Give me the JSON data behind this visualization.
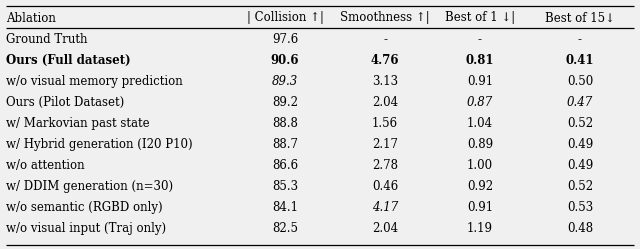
{
  "header_col0": "Ablation",
  "header_cols": [
    "| Collision ↑|",
    "Smoothness ↑|",
    "Best of 1 ↓|",
    "Best of 15↓"
  ],
  "rows": [
    {
      "ablation": "Ground Truth",
      "collision": "97.6",
      "smoothness": "-",
      "best1": "-",
      "best15": "-",
      "bold": false,
      "italic_collision": false,
      "italic_best1": false,
      "italic_best15": false,
      "italic_smoothness": false
    },
    {
      "ablation": "Ours (Full dataset)",
      "collision": "90.6",
      "smoothness": "4.76",
      "best1": "0.81",
      "best15": "0.41",
      "bold": true,
      "italic_collision": false,
      "italic_best1": false,
      "italic_best15": false,
      "italic_smoothness": false
    },
    {
      "ablation": "w/o visual memory prediction",
      "collision": "89.3",
      "smoothness": "3.13",
      "best1": "0.91",
      "best15": "0.50",
      "bold": false,
      "italic_collision": true,
      "italic_best1": false,
      "italic_best15": false,
      "italic_smoothness": false
    },
    {
      "ablation": "Ours (Pilot Dataset)",
      "collision": "89.2",
      "smoothness": "2.04",
      "best1": "0.87",
      "best15": "0.47",
      "bold": false,
      "italic_collision": false,
      "italic_best1": true,
      "italic_best15": true,
      "italic_smoothness": false
    },
    {
      "ablation": "w/ Markovian past state",
      "collision": "88.8",
      "smoothness": "1.56",
      "best1": "1.04",
      "best15": "0.52",
      "bold": false,
      "italic_collision": false,
      "italic_best1": false,
      "italic_best15": false,
      "italic_smoothness": false
    },
    {
      "ablation": "w/ Hybrid generation (I20 P10)",
      "collision": "88.7",
      "smoothness": "2.17",
      "best1": "0.89",
      "best15": "0.49",
      "bold": false,
      "italic_collision": false,
      "italic_best1": false,
      "italic_best15": false,
      "italic_smoothness": false
    },
    {
      "ablation": "w/o attention",
      "collision": "86.6",
      "smoothness": "2.78",
      "best1": "1.00",
      "best15": "0.49",
      "bold": false,
      "italic_collision": false,
      "italic_best1": false,
      "italic_best15": false,
      "italic_smoothness": false
    },
    {
      "ablation": "w/ DDIM generation (n=30)",
      "collision": "85.3",
      "smoothness": "0.46",
      "best1": "0.92",
      "best15": "0.52",
      "bold": false,
      "italic_collision": false,
      "italic_best1": false,
      "italic_best15": false,
      "italic_smoothness": false
    },
    {
      "ablation": "w/o semantic (RGBD only)",
      "collision": "84.1",
      "smoothness": "4.17",
      "best1": "0.91",
      "best15": "0.53",
      "bold": false,
      "italic_collision": false,
      "italic_best1": false,
      "italic_best15": false,
      "italic_smoothness": true
    },
    {
      "ablation": "w/o visual input (Traj only)",
      "collision": "82.5",
      "smoothness": "2.04",
      "best1": "1.19",
      "best15": "0.48",
      "bold": false,
      "italic_collision": false,
      "italic_best1": false,
      "italic_best15": false,
      "italic_smoothness": false
    }
  ],
  "bg_color": "#f0f0f0",
  "text_color": "#000000",
  "font_size": 8.5,
  "line_color": "#000000",
  "fig_width": 6.4,
  "fig_height": 2.49,
  "dpi": 100
}
